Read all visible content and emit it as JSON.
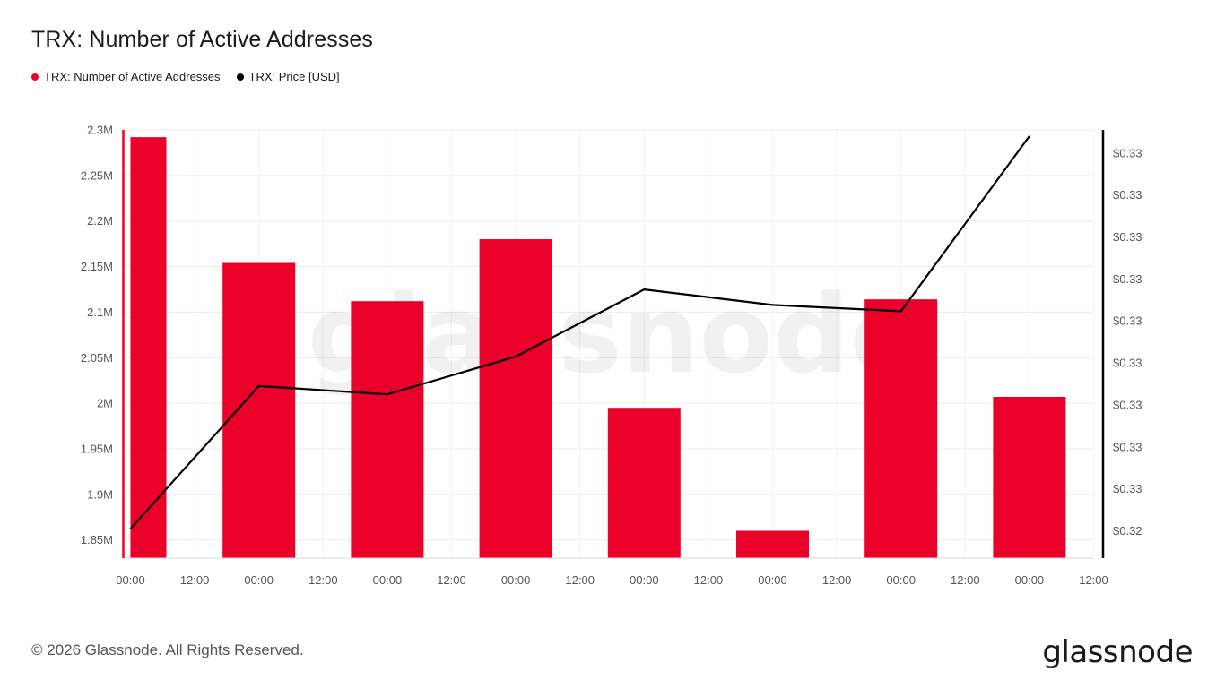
{
  "header": {
    "title": "TRX: Number of Active Addresses"
  },
  "legend": [
    {
      "label": "TRX: Number of Active Addresses",
      "color": "#EB0029"
    },
    {
      "label": "TRX: Price [USD]",
      "color": "#000000"
    }
  ],
  "footer": {
    "copyright": "© 2026 Glassnode. All Rights Reserved.",
    "brand": "glassnode",
    "watermark": "glassnode"
  },
  "chart_data": {
    "type": "bar",
    "title": "TRX: Number of Active Addresses",
    "x_tick_labels": [
      "00:00",
      "12:00",
      "00:00",
      "12:00",
      "00:00",
      "12:00",
      "00:00",
      "12:00",
      "00:00",
      "12:00",
      "00:00",
      "12:00",
      "00:00",
      "12:00",
      "00:00",
      "12:00"
    ],
    "x_range_hours": [
      0,
      180
    ],
    "grid": true,
    "legend_position": "top-left",
    "left_axis": {
      "ylim": [
        1830000,
        2300000
      ],
      "tick_values": [
        1850000,
        1900000,
        1950000,
        2000000,
        2050000,
        2100000,
        2150000,
        2200000,
        2250000,
        2300000
      ],
      "tick_labels": [
        "1.85M",
        "1.9M",
        "1.95M",
        "2M",
        "2.05M",
        "2.1M",
        "2.15M",
        "2.2M",
        "2.25M",
        "2.3M"
      ]
    },
    "right_axis": {
      "tick_labels": [
        "$0.32",
        "$0.33",
        "$0.33",
        "$0.33",
        "$0.33",
        "$0.33",
        "$0.33",
        "$0.33",
        "$0.33",
        "$0.33"
      ],
      "tick_values": [
        0.324,
        0.325,
        0.326,
        0.327,
        0.328,
        0.329,
        0.33,
        0.331,
        0.332,
        0.333
      ],
      "ylim": [
        0.32335,
        0.33355
      ]
    },
    "series": [
      {
        "name": "TRX: Number of Active Addresses",
        "type": "bar",
        "color": "#EB0029",
        "x_hours": [
          0,
          24,
          48,
          72,
          96,
          120,
          144,
          168
        ],
        "values": [
          2292000,
          2154000,
          2112000,
          2180000,
          1995000,
          1860000,
          2114000,
          2007000
        ]
      },
      {
        "name": "TRX: Price [USD]",
        "type": "line",
        "color": "#000000",
        "x_hours": [
          0,
          24,
          48,
          72,
          96,
          120,
          144,
          168
        ],
        "values": [
          0.32405,
          0.32745,
          0.32725,
          0.32815,
          0.32975,
          0.32938,
          0.32923,
          0.3334
        ]
      }
    ]
  }
}
